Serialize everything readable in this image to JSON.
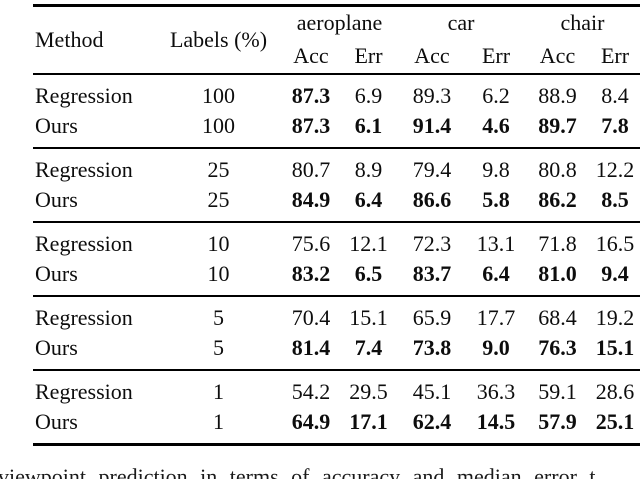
{
  "table": {
    "headers": {
      "method": "Method",
      "labels": "Labels (%)",
      "groups": [
        "aeroplane",
        "car",
        "chair"
      ],
      "sub": [
        "Acc",
        "Err"
      ]
    },
    "blocks": [
      {
        "rows": [
          {
            "method": "Regression",
            "labels": "100",
            "values": [
              "87.3",
              "6.9",
              "89.3",
              "6.2",
              "88.9",
              "8.4"
            ],
            "bold": [
              true,
              false,
              false,
              false,
              false,
              false
            ]
          },
          {
            "method": "Ours",
            "labels": "100",
            "values": [
              "87.3",
              "6.1",
              "91.4",
              "4.6",
              "89.7",
              "7.8"
            ],
            "bold": [
              true,
              true,
              true,
              true,
              true,
              true
            ]
          }
        ]
      },
      {
        "rows": [
          {
            "method": "Regression",
            "labels": "25",
            "values": [
              "80.7",
              "8.9",
              "79.4",
              "9.8",
              "80.8",
              "12.2"
            ],
            "bold": [
              false,
              false,
              false,
              false,
              false,
              false
            ]
          },
          {
            "method": "Ours",
            "labels": "25",
            "values": [
              "84.9",
              "6.4",
              "86.6",
              "5.8",
              "86.2",
              "8.5"
            ],
            "bold": [
              true,
              true,
              true,
              true,
              true,
              true
            ]
          }
        ]
      },
      {
        "rows": [
          {
            "method": "Regression",
            "labels": "10",
            "values": [
              "75.6",
              "12.1",
              "72.3",
              "13.1",
              "71.8",
              "16.5"
            ],
            "bold": [
              false,
              false,
              false,
              false,
              false,
              false
            ]
          },
          {
            "method": "Ours",
            "labels": "10",
            "values": [
              "83.2",
              "6.5",
              "83.7",
              "6.4",
              "81.0",
              "9.4"
            ],
            "bold": [
              true,
              true,
              true,
              true,
              true,
              true
            ]
          }
        ]
      },
      {
        "rows": [
          {
            "method": "Regression",
            "labels": "5",
            "values": [
              "70.4",
              "15.1",
              "65.9",
              "17.7",
              "68.4",
              "19.2"
            ],
            "bold": [
              false,
              false,
              false,
              false,
              false,
              false
            ]
          },
          {
            "method": "Ours",
            "labels": "5",
            "values": [
              "81.4",
              "7.4",
              "73.8",
              "9.0",
              "76.3",
              "15.1"
            ],
            "bold": [
              true,
              true,
              true,
              true,
              true,
              true
            ]
          }
        ]
      },
      {
        "rows": [
          {
            "method": "Regression",
            "labels": "1",
            "values": [
              "54.2",
              "29.5",
              "45.1",
              "36.3",
              "59.1",
              "28.6"
            ],
            "bold": [
              false,
              false,
              false,
              false,
              false,
              false
            ]
          },
          {
            "method": "Ours",
            "labels": "1",
            "values": [
              "64.9",
              "17.1",
              "62.4",
              "14.5",
              "57.9",
              "25.1"
            ],
            "bold": [
              true,
              true,
              true,
              true,
              true,
              true
            ]
          }
        ]
      }
    ]
  },
  "caption_fragment": "viewpoint prediction in terms of accuracy and median error t",
  "colors": {
    "text": "#0d0d0d",
    "rule": "#000000",
    "background": "#ffffff"
  }
}
